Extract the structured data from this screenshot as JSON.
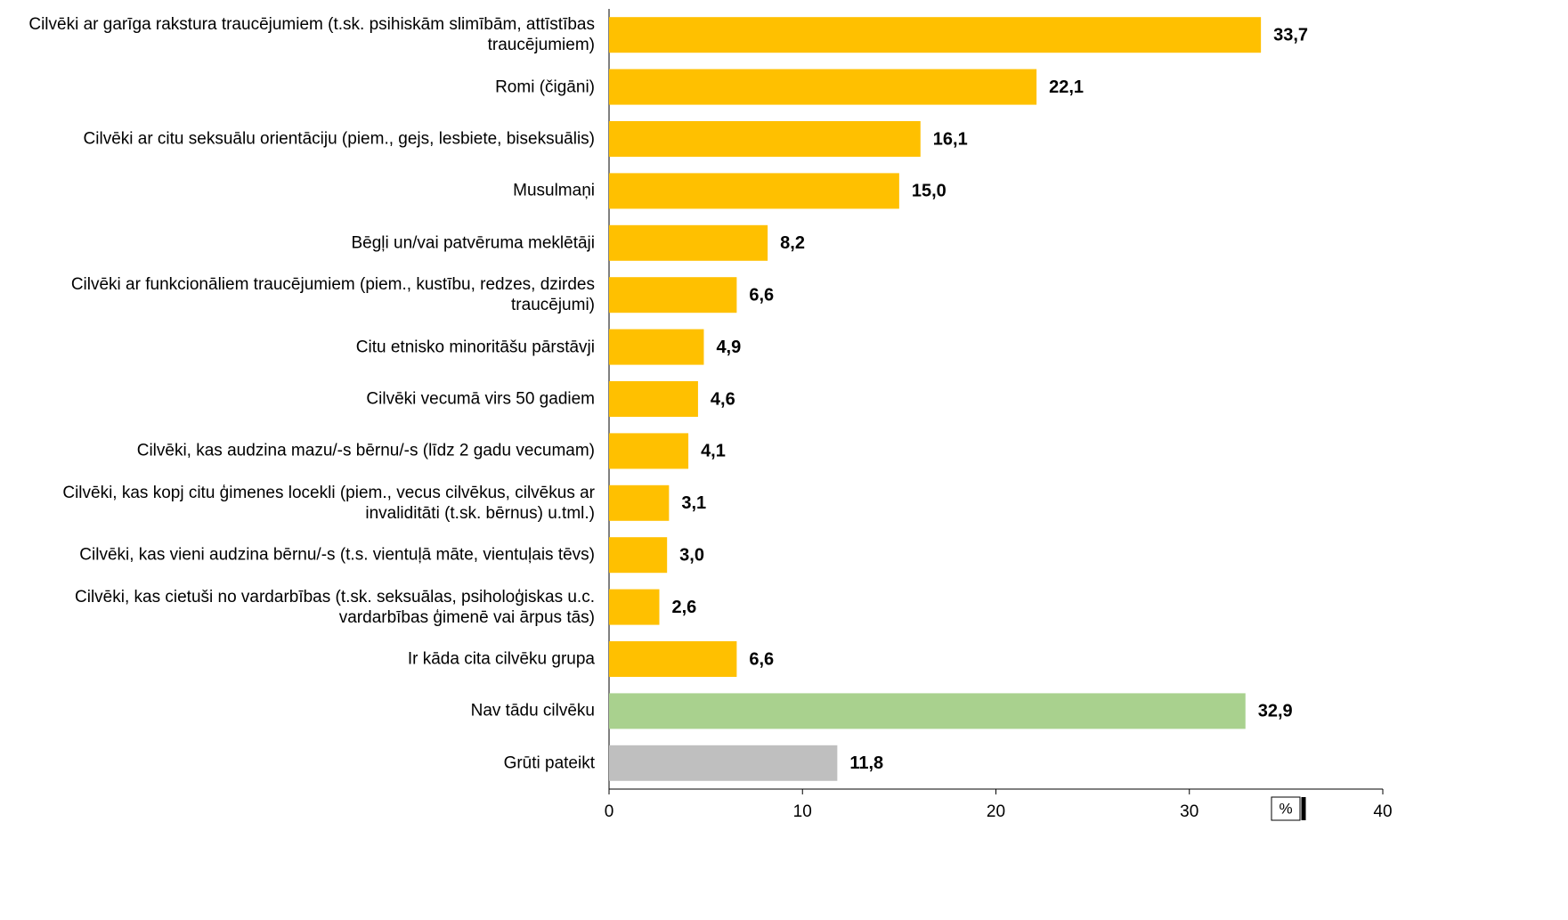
{
  "chart_data": {
    "type": "bar",
    "orientation": "horizontal",
    "categories": [
      "Cilvēki ar garīga rakstura traucējumiem (t.sk. psihiskām slimībām, attīstības traucējumiem)",
      "Romi (čigāni)",
      "Cilvēki ar citu seksuālu orientāciju (piem., gejs, lesbiete, biseksuālis)",
      "Musulmaņi",
      "Bēgļi un/vai patvēruma meklētāji",
      "Cilvēki ar funkcionāliem traucējumiem (piem., kustību, redzes, dzirdes traucējumi)",
      "Citu etnisko minoritāšu pārstāvji",
      "Cilvēki vecumā virs 50 gadiem",
      "Cilvēki, kas audzina mazu/-s bērnu/-s (līdz 2 gadu vecumam)",
      "Cilvēki, kas kopj citu ģimenes locekli (piem., vecus cilvēkus, cilvēkus ar invaliditāti (t.sk. bērnus) u.tml.)",
      "Cilvēki, kas vieni audzina bērnu/-s (t.s. vientuļā māte, vientuļais tēvs)",
      "Cilvēki, kas cietuši no vardarbības (t.sk. seksuālas, psiholoģiskas u.c. vardarbības ģimenē vai ārpus tās)",
      "Ir kāda cita cilvēku grupa",
      "Nav tādu cilvēku",
      "Grūti pateikt"
    ],
    "values": [
      33.7,
      22.1,
      16.1,
      15.0,
      8.2,
      6.6,
      4.9,
      4.6,
      4.1,
      3.1,
      3.0,
      2.6,
      6.6,
      32.9,
      11.8
    ],
    "value_labels": [
      "33,7",
      "22,1",
      "16,1",
      "15,0",
      "8,2",
      "6,6",
      "4,9",
      "4,6",
      "4,1",
      "3,1",
      "3,0",
      "2,6",
      "6,6",
      "32,9",
      "11,8"
    ],
    "colors": [
      "#ffc000",
      "#ffc000",
      "#ffc000",
      "#ffc000",
      "#ffc000",
      "#ffc000",
      "#ffc000",
      "#ffc000",
      "#ffc000",
      "#ffc000",
      "#ffc000",
      "#ffc000",
      "#ffc000",
      "#a9d18e",
      "#bfbfbf"
    ],
    "xlim": [
      0,
      40
    ],
    "xticks": [
      0,
      10,
      20,
      30,
      40
    ],
    "x_label": "%"
  }
}
